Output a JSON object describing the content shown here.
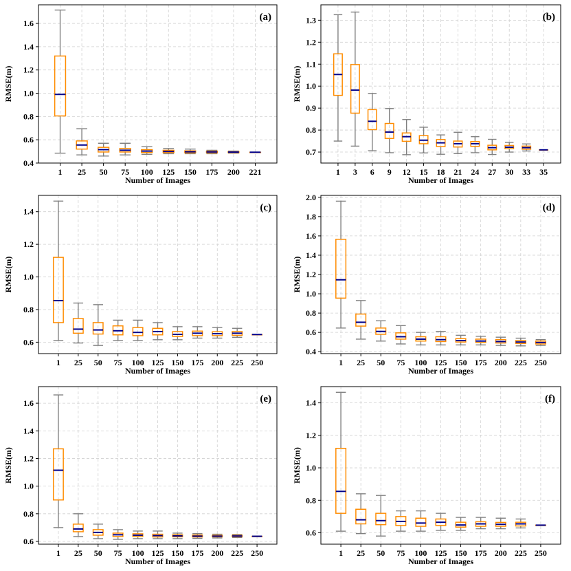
{
  "figure": {
    "colors": {
      "box": "#FF8C00",
      "median": "#00008B",
      "whisker": "#808080",
      "grid": "#d0d0d0",
      "axis": "#000000"
    }
  },
  "chart_data": [
    {
      "panel_label": "(a)",
      "type": "box",
      "xlabel": "Number of Images",
      "ylabel": "RMSE(m)",
      "ylim": [
        0.4,
        1.76
      ],
      "yticks": [
        0.4,
        0.6,
        0.8,
        1.0,
        1.2,
        1.4,
        1.6
      ],
      "ytick_labels": [
        "0.4",
        "0.6",
        "0.8",
        "1.0",
        "1.2",
        "1.4",
        "1.6"
      ],
      "grid": true,
      "categories": [
        "1",
        "25",
        "50",
        "75",
        "100",
        "125",
        "150",
        "175",
        "200",
        "221"
      ],
      "boxes": [
        {
          "whislo": 0.485,
          "q1": 0.805,
          "med": 0.99,
          "q3": 1.32,
          "whishi": 1.715
        },
        {
          "whislo": 0.47,
          "q1": 0.52,
          "med": 0.555,
          "q3": 0.59,
          "whishi": 0.695
        },
        {
          "whislo": 0.46,
          "q1": 0.495,
          "med": 0.515,
          "q3": 0.535,
          "whishi": 0.57
        },
        {
          "whislo": 0.47,
          "q1": 0.495,
          "med": 0.51,
          "q3": 0.525,
          "whishi": 0.57
        },
        {
          "whislo": 0.475,
          "q1": 0.49,
          "med": 0.503,
          "q3": 0.515,
          "whishi": 0.54
        },
        {
          "whislo": 0.48,
          "q1": 0.49,
          "med": 0.5,
          "q3": 0.51,
          "whishi": 0.525
        },
        {
          "whislo": 0.48,
          "q1": 0.488,
          "med": 0.497,
          "q3": 0.505,
          "whishi": 0.52
        },
        {
          "whislo": 0.48,
          "q1": 0.488,
          "med": 0.495,
          "q3": 0.502,
          "whishi": 0.51
        },
        {
          "whislo": 0.485,
          "q1": 0.489,
          "med": 0.494,
          "q3": 0.498,
          "whishi": 0.503
        },
        {
          "whislo": 0.493,
          "q1": 0.493,
          "med": 0.493,
          "q3": 0.493,
          "whishi": 0.493
        }
      ]
    },
    {
      "panel_label": "(b)",
      "type": "box",
      "xlabel": "Number of Images",
      "ylabel": "RMSE(m)",
      "ylim": [
        0.65,
        1.37
      ],
      "yticks": [
        0.7,
        0.8,
        0.9,
        1.0,
        1.1,
        1.2,
        1.3
      ],
      "ytick_labels": [
        "0.7",
        "0.8",
        "0.9",
        "1.0",
        "1.1",
        "1.2",
        "1.3"
      ],
      "grid": true,
      "categories": [
        "1",
        "3",
        "6",
        "9",
        "12",
        "15",
        "18",
        "21",
        "24",
        "27",
        "30",
        "33",
        "35"
      ],
      "boxes": [
        {
          "whislo": 0.75,
          "q1": 0.958,
          "med": 1.053,
          "q3": 1.147,
          "whishi": 1.325
        },
        {
          "whislo": 0.727,
          "q1": 0.877,
          "med": 0.982,
          "q3": 1.098,
          "whishi": 1.337
        },
        {
          "whislo": 0.706,
          "q1": 0.802,
          "med": 0.84,
          "q3": 0.893,
          "whishi": 0.967
        },
        {
          "whislo": 0.697,
          "q1": 0.762,
          "med": 0.791,
          "q3": 0.83,
          "whishi": 0.898
        },
        {
          "whislo": 0.688,
          "q1": 0.749,
          "med": 0.77,
          "q3": 0.787,
          "whishi": 0.848
        },
        {
          "whislo": 0.696,
          "q1": 0.738,
          "med": 0.754,
          "q3": 0.775,
          "whishi": 0.813
        },
        {
          "whislo": 0.69,
          "q1": 0.725,
          "med": 0.742,
          "q3": 0.757,
          "whishi": 0.778
        },
        {
          "whislo": 0.693,
          "q1": 0.723,
          "med": 0.738,
          "q3": 0.75,
          "whishi": 0.79
        },
        {
          "whislo": 0.697,
          "q1": 0.726,
          "med": 0.738,
          "q3": 0.748,
          "whishi": 0.77
        },
        {
          "whislo": 0.689,
          "q1": 0.71,
          "med": 0.72,
          "q3": 0.731,
          "whishi": 0.758
        },
        {
          "whislo": 0.7,
          "q1": 0.715,
          "med": 0.722,
          "q3": 0.73,
          "whishi": 0.744
        },
        {
          "whislo": 0.705,
          "q1": 0.713,
          "med": 0.72,
          "q3": 0.727,
          "whishi": 0.737
        },
        {
          "whislo": 0.71,
          "q1": 0.71,
          "med": 0.71,
          "q3": 0.71,
          "whishi": 0.71
        }
      ]
    },
    {
      "panel_label": "(c)",
      "type": "box",
      "xlabel": "Number of Images",
      "ylabel": "RMSE(m)",
      "ylim": [
        0.53,
        1.5
      ],
      "yticks": [
        0.6,
        0.8,
        1.0,
        1.2,
        1.4
      ],
      "ytick_labels": [
        "0.6",
        "0.8",
        "1.0",
        "1.2",
        "1.4"
      ],
      "grid": true,
      "categories": [
        "1",
        "25",
        "50",
        "75",
        "100",
        "125",
        "150",
        "175",
        "200",
        "225",
        "250"
      ],
      "boxes": [
        {
          "whislo": 0.61,
          "q1": 0.72,
          "med": 0.855,
          "q3": 1.12,
          "whishi": 1.465
        },
        {
          "whislo": 0.595,
          "q1": 0.655,
          "med": 0.68,
          "q3": 0.745,
          "whishi": 0.84
        },
        {
          "whislo": 0.58,
          "q1": 0.65,
          "med": 0.675,
          "q3": 0.72,
          "whishi": 0.83
        },
        {
          "whislo": 0.61,
          "q1": 0.645,
          "med": 0.67,
          "q3": 0.7,
          "whishi": 0.735
        },
        {
          "whislo": 0.61,
          "q1": 0.64,
          "med": 0.66,
          "q3": 0.69,
          "whishi": 0.735
        },
        {
          "whislo": 0.615,
          "q1": 0.645,
          "med": 0.665,
          "q3": 0.685,
          "whishi": 0.72
        },
        {
          "whislo": 0.615,
          "q1": 0.635,
          "med": 0.648,
          "q3": 0.665,
          "whishi": 0.695
        },
        {
          "whislo": 0.625,
          "q1": 0.64,
          "med": 0.655,
          "q3": 0.668,
          "whishi": 0.695
        },
        {
          "whislo": 0.625,
          "q1": 0.64,
          "med": 0.652,
          "q3": 0.664,
          "whishi": 0.69
        },
        {
          "whislo": 0.63,
          "q1": 0.642,
          "med": 0.655,
          "q3": 0.665,
          "whishi": 0.685
        },
        {
          "whislo": 0.647,
          "q1": 0.647,
          "med": 0.647,
          "q3": 0.647,
          "whishi": 0.647
        }
      ]
    },
    {
      "panel_label": "(d)",
      "type": "box",
      "xlabel": "Number of Images",
      "ylabel": "RMSE(m)",
      "ylim": [
        0.38,
        2.02
      ],
      "yticks": [
        0.4,
        0.6,
        0.8,
        1.0,
        1.2,
        1.4,
        1.6,
        1.8,
        2.0
      ],
      "ytick_labels": [
        "0.4",
        "0.6",
        "0.8",
        "1.0",
        "1.2",
        "1.4",
        "1.6",
        "1.8",
        "2.0"
      ],
      "grid": true,
      "categories": [
        "1",
        "25",
        "50",
        "75",
        "100",
        "125",
        "150",
        "175",
        "200",
        "225",
        "250"
      ],
      "boxes": [
        {
          "whislo": 0.645,
          "q1": 0.955,
          "med": 1.145,
          "q3": 1.565,
          "whishi": 1.96
        },
        {
          "whislo": 0.53,
          "q1": 0.665,
          "med": 0.705,
          "q3": 0.79,
          "whishi": 0.93
        },
        {
          "whislo": 0.51,
          "q1": 0.58,
          "med": 0.61,
          "q3": 0.645,
          "whishi": 0.72
        },
        {
          "whislo": 0.48,
          "q1": 0.53,
          "med": 0.555,
          "q3": 0.595,
          "whishi": 0.67
        },
        {
          "whislo": 0.47,
          "q1": 0.51,
          "med": 0.53,
          "q3": 0.555,
          "whishi": 0.6
        },
        {
          "whislo": 0.47,
          "q1": 0.505,
          "med": 0.525,
          "q3": 0.555,
          "whishi": 0.61
        },
        {
          "whislo": 0.47,
          "q1": 0.5,
          "med": 0.515,
          "q3": 0.535,
          "whishi": 0.57
        },
        {
          "whislo": 0.47,
          "q1": 0.495,
          "med": 0.51,
          "q3": 0.53,
          "whishi": 0.56
        },
        {
          "whislo": 0.465,
          "q1": 0.49,
          "med": 0.505,
          "q3": 0.525,
          "whishi": 0.55
        },
        {
          "whislo": 0.46,
          "q1": 0.485,
          "med": 0.5,
          "q3": 0.515,
          "whishi": 0.54
        },
        {
          "whislo": 0.465,
          "q1": 0.48,
          "med": 0.495,
          "q3": 0.51,
          "whishi": 0.525
        }
      ]
    },
    {
      "panel_label": "(e)",
      "type": "box",
      "xlabel": "Number of Images",
      "ylabel": "RMSE(m)",
      "ylim": [
        0.58,
        1.72
      ],
      "yticks": [
        0.6,
        0.8,
        1.0,
        1.2,
        1.4,
        1.6
      ],
      "ytick_labels": [
        "0.6",
        "0.8",
        "1.0",
        "1.2",
        "1.4",
        "1.6"
      ],
      "grid": true,
      "categories": [
        "1",
        "25",
        "50",
        "75",
        "100",
        "125",
        "150",
        "175",
        "200",
        "225",
        "250"
      ],
      "boxes": [
        {
          "whislo": 0.7,
          "q1": 0.9,
          "med": 1.115,
          "q3": 1.27,
          "whishi": 1.66
        },
        {
          "whislo": 0.635,
          "q1": 0.67,
          "med": 0.69,
          "q3": 0.725,
          "whishi": 0.8
        },
        {
          "whislo": 0.62,
          "q1": 0.645,
          "med": 0.665,
          "q3": 0.685,
          "whishi": 0.725
        },
        {
          "whislo": 0.615,
          "q1": 0.635,
          "med": 0.648,
          "q3": 0.66,
          "whishi": 0.685
        },
        {
          "whislo": 0.62,
          "q1": 0.635,
          "med": 0.645,
          "q3": 0.655,
          "whishi": 0.675
        },
        {
          "whislo": 0.62,
          "q1": 0.632,
          "med": 0.642,
          "q3": 0.652,
          "whishi": 0.675
        },
        {
          "whislo": 0.62,
          "q1": 0.633,
          "med": 0.64,
          "q3": 0.648,
          "whishi": 0.66
        },
        {
          "whislo": 0.622,
          "q1": 0.632,
          "med": 0.638,
          "q3": 0.646,
          "whishi": 0.656
        },
        {
          "whislo": 0.625,
          "q1": 0.633,
          "med": 0.638,
          "q3": 0.644,
          "whishi": 0.652
        },
        {
          "whislo": 0.628,
          "q1": 0.634,
          "med": 0.639,
          "q3": 0.644,
          "whishi": 0.65
        },
        {
          "whislo": 0.637,
          "q1": 0.637,
          "med": 0.637,
          "q3": 0.637,
          "whishi": 0.637
        }
      ]
    },
    {
      "panel_label": "(f)",
      "type": "box",
      "xlabel": "Number of Images",
      "ylabel": "RMSE(m)",
      "ylim": [
        0.53,
        1.5
      ],
      "yticks": [
        0.6,
        0.8,
        1.0,
        1.2,
        1.4
      ],
      "ytick_labels": [
        "0.6",
        "0.8",
        "1.0",
        "1.2",
        "1.4"
      ],
      "grid": true,
      "categories": [
        "1",
        "25",
        "50",
        "75",
        "100",
        "125",
        "150",
        "175",
        "200",
        "225",
        "250"
      ],
      "boxes": [
        {
          "whislo": 0.61,
          "q1": 0.72,
          "med": 0.855,
          "q3": 1.12,
          "whishi": 1.465
        },
        {
          "whislo": 0.595,
          "q1": 0.655,
          "med": 0.68,
          "q3": 0.745,
          "whishi": 0.84
        },
        {
          "whislo": 0.58,
          "q1": 0.65,
          "med": 0.675,
          "q3": 0.72,
          "whishi": 0.83
        },
        {
          "whislo": 0.61,
          "q1": 0.645,
          "med": 0.67,
          "q3": 0.7,
          "whishi": 0.735
        },
        {
          "whislo": 0.61,
          "q1": 0.64,
          "med": 0.66,
          "q3": 0.69,
          "whishi": 0.735
        },
        {
          "whislo": 0.615,
          "q1": 0.645,
          "med": 0.665,
          "q3": 0.685,
          "whishi": 0.72
        },
        {
          "whislo": 0.615,
          "q1": 0.635,
          "med": 0.648,
          "q3": 0.665,
          "whishi": 0.695
        },
        {
          "whislo": 0.625,
          "q1": 0.64,
          "med": 0.655,
          "q3": 0.668,
          "whishi": 0.695
        },
        {
          "whislo": 0.625,
          "q1": 0.64,
          "med": 0.652,
          "q3": 0.664,
          "whishi": 0.69
        },
        {
          "whislo": 0.63,
          "q1": 0.642,
          "med": 0.655,
          "q3": 0.665,
          "whishi": 0.685
        },
        {
          "whislo": 0.647,
          "q1": 0.647,
          "med": 0.647,
          "q3": 0.647,
          "whishi": 0.647
        }
      ]
    }
  ]
}
